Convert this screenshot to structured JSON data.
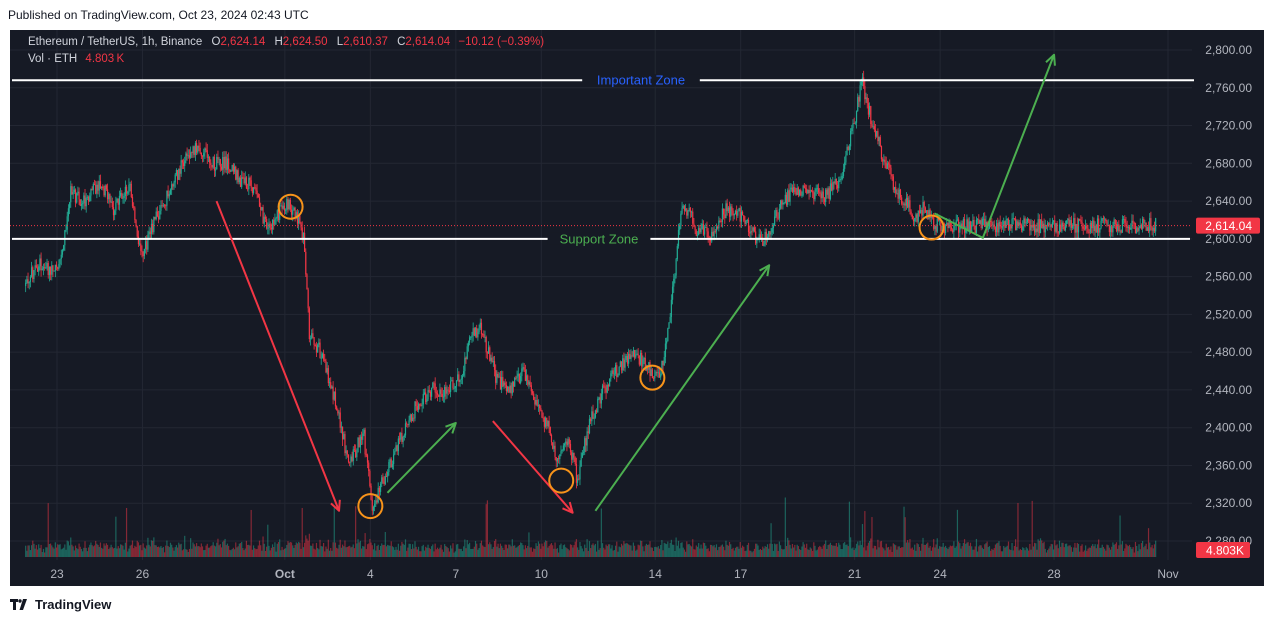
{
  "published_text": "Published on TradingView.com, Oct 23, 2024 02:43 UTC",
  "brand": {
    "name": "TradingView",
    "logo_icon": "tradingview-logo-icon"
  },
  "header": {
    "symbol": "Ethereum / TetherUS, 1h, Binance",
    "open_label": "O",
    "open": "2,624.14",
    "high_label": "H",
    "high": "2,624.50",
    "low_label": "L",
    "low": "2,610.37",
    "close_label": "C",
    "close": "2,614.04",
    "change": "−10.12 (−0.39%)",
    "vol_label": "Vol · ETH",
    "vol_value": "4.803 K"
  },
  "colors": {
    "background": "#161a25",
    "grid": "#232733",
    "up": "#22ab94",
    "down": "#f23645",
    "text": "#b2b5be",
    "important_zone": "#2962ff",
    "support_zone": "#4caf50",
    "arrow_green": "#4caf50",
    "arrow_red": "#f23645",
    "circle": "#f7931a"
  },
  "chart_data": {
    "type": "candlestick",
    "symbol": "ETH/USDT",
    "timeframe": "1h",
    "y_axis": {
      "ylim": [
        2270,
        2830
      ],
      "ticks": [
        "2,800.00",
        "2,760.00",
        "2,720.00",
        "2,680.00",
        "2,640.00",
        "2,600.00",
        "2,560.00",
        "2,520.00",
        "2,480.00",
        "2,440.00",
        "2,400.00",
        "2,360.00",
        "2,320.00",
        "2,280.00"
      ]
    },
    "x_axis": {
      "labels": [
        {
          "text": "23",
          "day": 0
        },
        {
          "text": "26",
          "day": 3
        },
        {
          "text": "Oct",
          "day": 8
        },
        {
          "text": "4",
          "day": 11
        },
        {
          "text": "7",
          "day": 14
        },
        {
          "text": "10",
          "day": 17
        },
        {
          "text": "14",
          "day": 21
        },
        {
          "text": "17",
          "day": 24
        },
        {
          "text": "21",
          "day": 28
        },
        {
          "text": "24",
          "day": 31
        },
        {
          "text": "28",
          "day": 35
        },
        {
          "text": "Nov",
          "day": 39
        }
      ],
      "start_day": -1.1,
      "end_day": 38.6
    },
    "price_path": [
      [
        -1.1,
        2550
      ],
      [
        -0.6,
        2575
      ],
      [
        0.0,
        2565
      ],
      [
        0.3,
        2600
      ],
      [
        0.5,
        2650
      ],
      [
        1.0,
        2640
      ],
      [
        1.6,
        2660
      ],
      [
        2.0,
        2630
      ],
      [
        2.6,
        2655
      ],
      [
        3.0,
        2580
      ],
      [
        3.5,
        2620
      ],
      [
        4.0,
        2650
      ],
      [
        4.5,
        2685
      ],
      [
        5.0,
        2700
      ],
      [
        5.5,
        2680
      ],
      [
        6.0,
        2680
      ],
      [
        6.5,
        2660
      ],
      [
        7.0,
        2655
      ],
      [
        7.3,
        2620
      ],
      [
        7.6,
        2615
      ],
      [
        8.0,
        2638
      ],
      [
        8.4,
        2630
      ],
      [
        8.7,
        2600
      ],
      [
        8.9,
        2500
      ],
      [
        9.3,
        2480
      ],
      [
        9.8,
        2430
      ],
      [
        10.3,
        2360
      ],
      [
        10.8,
        2395
      ],
      [
        11.1,
        2315
      ],
      [
        11.5,
        2345
      ],
      [
        12.0,
        2380
      ],
      [
        12.6,
        2420
      ],
      [
        13.2,
        2440
      ],
      [
        13.7,
        2440
      ],
      [
        14.3,
        2460
      ],
      [
        14.6,
        2500
      ],
      [
        14.9,
        2505
      ],
      [
        15.5,
        2450
      ],
      [
        16.0,
        2440
      ],
      [
        16.4,
        2460
      ],
      [
        16.9,
        2420
      ],
      [
        17.3,
        2400
      ],
      [
        17.6,
        2365
      ],
      [
        18.0,
        2390
      ],
      [
        18.3,
        2345
      ],
      [
        18.7,
        2400
      ],
      [
        19.2,
        2440
      ],
      [
        19.8,
        2465
      ],
      [
        20.3,
        2480
      ],
      [
        20.7,
        2465
      ],
      [
        20.9,
        2460
      ],
      [
        21.2,
        2455
      ],
      [
        21.5,
        2500
      ],
      [
        21.7,
        2560
      ],
      [
        22.0,
        2640
      ],
      [
        22.5,
        2610
      ],
      [
        23.0,
        2605
      ],
      [
        23.5,
        2630
      ],
      [
        24.0,
        2625
      ],
      [
        24.5,
        2605
      ],
      [
        24.8,
        2595
      ],
      [
        25.1,
        2610
      ],
      [
        25.5,
        2640
      ],
      [
        26.0,
        2650
      ],
      [
        26.5,
        2648
      ],
      [
        27.0,
        2645
      ],
      [
        27.5,
        2660
      ],
      [
        28.0,
        2720
      ],
      [
        28.3,
        2765
      ],
      [
        28.6,
        2730
      ],
      [
        29.0,
        2690
      ],
      [
        29.5,
        2650
      ],
      [
        29.9,
        2635
      ],
      [
        30.2,
        2620
      ],
      [
        30.5,
        2635
      ],
      [
        30.8,
        2614
      ]
    ],
    "last_price_label": "2,614.04",
    "volume_label": "4.803K",
    "annotations": {
      "important_zone": {
        "label": "Important Zone",
        "price": 2768
      },
      "support_zone": {
        "label": "Support Zone",
        "price": 2600
      },
      "circles": [
        {
          "day": 8.2,
          "price": 2634
        },
        {
          "day": 11.0,
          "price": 2317
        },
        {
          "day": 17.7,
          "price": 2344
        },
        {
          "day": 20.9,
          "price": 2453
        },
        {
          "day": 30.7,
          "price": 2612
        }
      ],
      "arrows": [
        {
          "color": "red",
          "from": [
            5.6,
            2640
          ],
          "to": [
            9.9,
            2312
          ]
        },
        {
          "color": "red",
          "from": [
            15.3,
            2407
          ],
          "to": [
            18.1,
            2310
          ]
        },
        {
          "color": "green",
          "from": [
            11.6,
            2331
          ],
          "to": [
            14.0,
            2405
          ]
        },
        {
          "color": "green",
          "from": [
            18.9,
            2312
          ],
          "to": [
            25.0,
            2572
          ]
        },
        {
          "color": "green_path",
          "points": [
            [
              30.8,
              2627
            ],
            [
              32.5,
              2601
            ],
            [
              35.0,
              2795
            ]
          ]
        }
      ]
    }
  }
}
